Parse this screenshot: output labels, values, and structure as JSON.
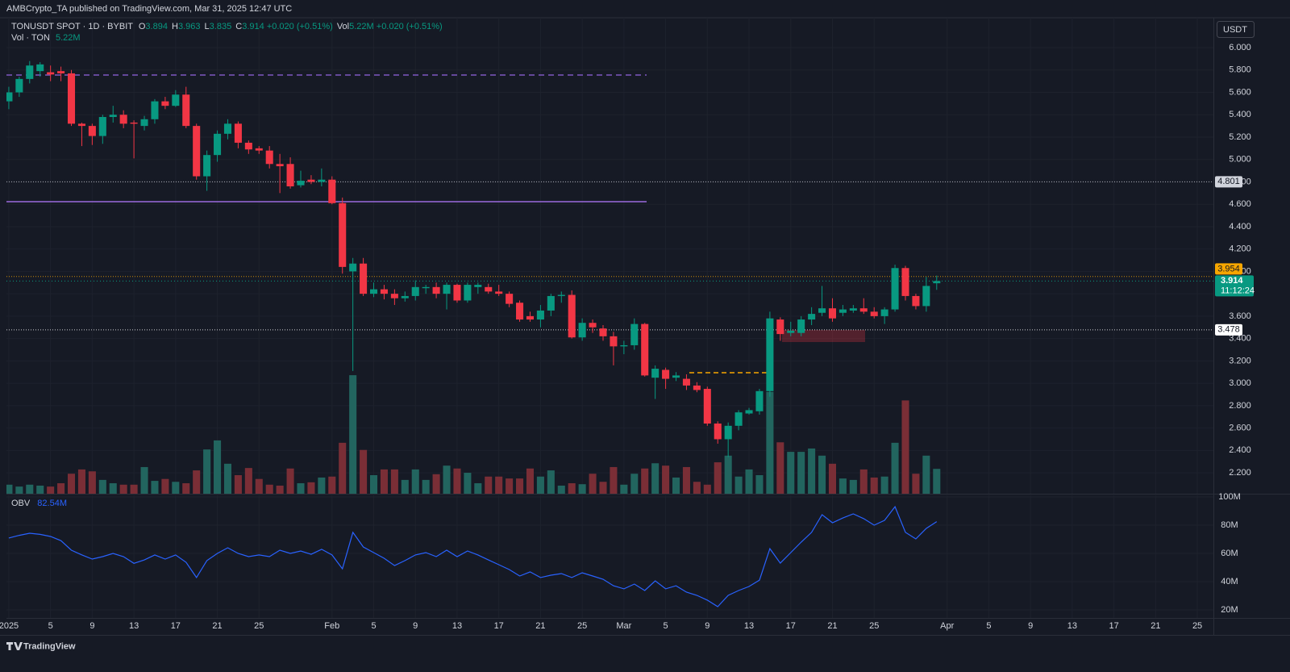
{
  "header": {
    "publisher": "AMBCrypto_TA published on TradingView.com, Mar 31, 2025 12:47 UTC",
    "logo": "TradingView"
  },
  "chart_data": {
    "type": "candlestick",
    "currency": "USDT",
    "legend": {
      "symbol": "TONUSDT SPOT · 1D · BYBIT",
      "o": "O",
      "h": "H",
      "l": "L",
      "c": "C",
      "change": "+0.020 (+0.51%)",
      "vol": "Vol"
    },
    "up_color": "#089981",
    "down_color": "#f23645",
    "x": [
      "2025-01-01",
      "2025-01-02",
      "2025-01-03",
      "2025-01-04",
      "2025-01-05",
      "2025-01-06",
      "2025-01-07",
      "2025-01-08",
      "2025-01-09",
      "2025-01-10",
      "2025-01-11",
      "2025-01-12",
      "2025-01-13",
      "2025-01-14",
      "2025-01-15",
      "2025-01-16",
      "2025-01-17",
      "2025-01-18",
      "2025-01-19",
      "2025-01-20",
      "2025-01-21",
      "2025-01-22",
      "2025-01-23",
      "2025-01-24",
      "2025-01-25",
      "2025-01-26",
      "2025-01-27",
      "2025-01-28",
      "2025-01-29",
      "2025-01-30",
      "2025-01-31",
      "2025-02-01",
      "2025-02-02",
      "2025-02-03",
      "2025-02-04",
      "2025-02-05",
      "2025-02-06",
      "2025-02-07",
      "2025-02-08",
      "2025-02-09",
      "2025-02-10",
      "2025-02-11",
      "2025-02-12",
      "2025-02-13",
      "2025-02-14",
      "2025-02-15",
      "2025-02-16",
      "2025-02-17",
      "2025-02-18",
      "2025-02-19",
      "2025-02-20",
      "2025-02-21",
      "2025-02-22",
      "2025-02-23",
      "2025-02-24",
      "2025-02-25",
      "2025-02-26",
      "2025-02-27",
      "2025-02-28",
      "2025-03-01",
      "2025-03-02",
      "2025-03-03",
      "2025-03-04",
      "2025-03-05",
      "2025-03-06",
      "2025-03-07",
      "2025-03-08",
      "2025-03-09",
      "2025-03-10",
      "2025-03-11",
      "2025-03-12",
      "2025-03-13",
      "2025-03-14",
      "2025-03-15",
      "2025-03-16",
      "2025-03-17",
      "2025-03-18",
      "2025-03-19",
      "2025-03-20",
      "2025-03-21",
      "2025-03-22",
      "2025-03-23",
      "2025-03-24",
      "2025-03-25",
      "2025-03-26",
      "2025-03-27",
      "2025-03-28",
      "2025-03-29",
      "2025-03-30",
      "2025-03-31"
    ],
    "open": [
      5.52,
      5.6,
      5.72,
      5.79,
      5.78,
      5.79,
      5.77,
      5.32,
      5.3,
      5.21,
      5.38,
      5.4,
      5.33,
      5.3,
      5.36,
      5.52,
      5.48,
      5.58,
      5.3,
      4.85,
      5.04,
      5.23,
      5.32,
      5.15,
      5.1,
      5.08,
      4.96,
      4.96,
      4.77,
      4.82,
      4.8,
      4.82,
      4.61,
      4.0,
      4.07,
      3.8,
      3.84,
      3.8,
      3.76,
      3.78,
      3.85,
      3.86,
      3.8,
      3.88,
      3.74,
      3.86,
      3.86,
      3.82,
      3.8,
      3.72,
      3.6,
      3.57,
      3.65,
      3.78,
      3.79,
      3.41,
      3.54,
      3.49,
      3.42,
      3.33,
      3.34,
      3.53,
      3.05,
      3.12,
      3.05,
      3.04,
      2.98,
      2.95,
      2.64,
      2.5,
      2.62,
      2.73,
      2.75,
      2.93,
      3.57,
      3.45,
      3.45,
      3.57,
      3.63,
      3.67,
      3.63,
      3.65,
      3.67,
      3.64,
      3.6,
      3.66,
      4.03,
      3.78,
      3.69,
      3.894
    ],
    "high": [
      5.65,
      5.74,
      5.88,
      5.87,
      5.84,
      5.83,
      5.8,
      5.33,
      5.32,
      5.4,
      5.48,
      5.44,
      5.35,
      5.39,
      5.54,
      5.56,
      5.62,
      5.65,
      5.32,
      5.08,
      5.26,
      5.36,
      5.34,
      5.17,
      5.12,
      5.12,
      5.05,
      5.02,
      4.9,
      4.86,
      4.92,
      4.85,
      4.66,
      4.12,
      4.12,
      3.9,
      3.88,
      3.84,
      3.82,
      3.92,
      3.88,
      3.9,
      3.9,
      3.89,
      3.9,
      3.9,
      3.89,
      3.88,
      3.82,
      3.74,
      3.64,
      3.7,
      3.8,
      3.82,
      3.83,
      3.58,
      3.57,
      3.52,
      3.46,
      3.38,
      3.58,
      3.54,
      3.16,
      3.14,
      3.1,
      3.08,
      3.01,
      2.97,
      2.66,
      2.65,
      2.76,
      2.78,
      2.95,
      3.64,
      3.59,
      3.55,
      3.6,
      3.68,
      3.87,
      3.76,
      3.7,
      3.7,
      3.76,
      3.68,
      3.68,
      4.06,
      4.05,
      3.8,
      3.95,
      3.963
    ],
    "low": [
      5.45,
      5.56,
      5.68,
      5.74,
      5.7,
      5.7,
      5.3,
      5.12,
      5.13,
      5.14,
      5.33,
      5.28,
      5.01,
      5.26,
      5.32,
      5.45,
      5.47,
      5.28,
      4.82,
      4.72,
      4.98,
      5.18,
      5.1,
      5.05,
      5.05,
      4.92,
      4.7,
      4.74,
      4.75,
      4.78,
      4.76,
      4.6,
      3.98,
      3.11,
      3.78,
      3.77,
      3.75,
      3.7,
      3.73,
      3.74,
      3.8,
      3.76,
      3.66,
      3.72,
      3.72,
      3.8,
      3.8,
      3.78,
      3.68,
      3.55,
      3.55,
      3.5,
      3.6,
      3.72,
      3.4,
      3.38,
      3.45,
      3.38,
      3.16,
      3.26,
      3.3,
      3.06,
      2.86,
      2.95,
      3.02,
      2.94,
      2.92,
      2.62,
      2.46,
      2.34,
      2.58,
      2.72,
      2.72,
      2.88,
      3.38,
      3.42,
      3.42,
      3.52,
      3.6,
      3.55,
      3.6,
      3.63,
      3.62,
      3.58,
      3.53,
      3.64,
      3.74,
      3.66,
      3.64,
      3.835
    ],
    "close": [
      5.6,
      5.72,
      5.84,
      5.85,
      5.76,
      5.77,
      5.32,
      5.3,
      5.21,
      5.38,
      5.4,
      5.32,
      5.32,
      5.36,
      5.52,
      5.48,
      5.58,
      5.3,
      4.85,
      5.04,
      5.23,
      5.32,
      5.15,
      5.09,
      5.08,
      4.96,
      4.94,
      4.76,
      4.81,
      4.8,
      4.82,
      4.61,
      4.04,
      4.07,
      3.8,
      3.84,
      3.8,
      3.76,
      3.78,
      3.86,
      3.86,
      3.8,
      3.88,
      3.74,
      3.88,
      3.88,
      3.82,
      3.8,
      3.71,
      3.57,
      3.57,
      3.65,
      3.78,
      3.79,
      3.41,
      3.54,
      3.5,
      3.42,
      3.33,
      3.34,
      3.53,
      3.07,
      3.13,
      3.04,
      3.07,
      2.98,
      2.94,
      2.64,
      2.5,
      2.62,
      2.74,
      2.76,
      2.93,
      3.58,
      3.44,
      3.47,
      3.57,
      3.62,
      3.67,
      3.58,
      3.66,
      3.67,
      3.64,
      3.6,
      3.66,
      4.03,
      3.78,
      3.69,
      3.87,
      3.914
    ],
    "ylim": [
      2.013,
      6.267
    ],
    "yticks": [
      {
        "value": 6.0,
        "label": "6.000"
      },
      {
        "value": 5.8,
        "label": "5.800"
      },
      {
        "value": 5.6,
        "label": "5.600"
      },
      {
        "value": 5.4,
        "label": "5.400"
      },
      {
        "value": 5.2,
        "label": "5.200"
      },
      {
        "value": 5.0,
        "label": "5.000"
      },
      {
        "value": 4.8,
        "label": "4.800"
      },
      {
        "value": 4.6,
        "label": "4.600"
      },
      {
        "value": 4.4,
        "label": "4.400"
      },
      {
        "value": 4.2,
        "label": "4.200"
      },
      {
        "value": 4.0,
        "label": "4.000"
      },
      {
        "value": 3.8,
        "label": "3.800"
      },
      {
        "value": 3.6,
        "label": "3.600"
      },
      {
        "value": 3.4,
        "label": "3.400"
      },
      {
        "value": 3.2,
        "label": "3.200"
      },
      {
        "value": 3.0,
        "label": "3.000"
      },
      {
        "value": 2.8,
        "label": "2.800"
      },
      {
        "value": 2.6,
        "label": "2.600"
      },
      {
        "value": 2.4,
        "label": "2.400"
      },
      {
        "value": 2.2,
        "label": "2.200"
      }
    ],
    "xlim": [
      "2024-12-31",
      "2025-04-26"
    ],
    "xticks": [
      {
        "value": "2025-01-01",
        "label": "2025"
      },
      {
        "value": "2025-01-05",
        "label": "5"
      },
      {
        "value": "2025-01-09",
        "label": "9"
      },
      {
        "value": "2025-01-13",
        "label": "13"
      },
      {
        "value": "2025-01-17",
        "label": "17"
      },
      {
        "value": "2025-01-21",
        "label": "21"
      },
      {
        "value": "2025-01-25",
        "label": "25"
      },
      {
        "value": "2025-02-01",
        "label": "Feb"
      },
      {
        "value": "2025-02-05",
        "label": "5"
      },
      {
        "value": "2025-02-09",
        "label": "9"
      },
      {
        "value": "2025-02-13",
        "label": "13"
      },
      {
        "value": "2025-02-17",
        "label": "17"
      },
      {
        "value": "2025-02-21",
        "label": "21"
      },
      {
        "value": "2025-02-25",
        "label": "25"
      },
      {
        "value": "2025-03-01",
        "label": "Mar"
      },
      {
        "value": "2025-03-05",
        "label": "5"
      },
      {
        "value": "2025-03-09",
        "label": "9"
      },
      {
        "value": "2025-03-13",
        "label": "13"
      },
      {
        "value": "2025-03-17",
        "label": "17"
      },
      {
        "value": "2025-03-21",
        "label": "21"
      },
      {
        "value": "2025-03-25",
        "label": "25"
      },
      {
        "value": "2025-04-01",
        "label": "Apr"
      },
      {
        "value": "2025-04-05",
        "label": "5"
      },
      {
        "value": "2025-04-09",
        "label": "9"
      },
      {
        "value": "2025-04-13",
        "label": "13"
      },
      {
        "value": "2025-04-17",
        "label": "17"
      },
      {
        "value": "2025-04-21",
        "label": "21"
      },
      {
        "value": "2025-04-25",
        "label": "25"
      }
    ],
    "grid": true,
    "price_lines": [
      4.801,
      3.954,
      3.478
    ],
    "price_line_colors": [
      "#d1d4dc",
      "#f7a600",
      "#ffffff"
    ],
    "countdown": "11:12:24",
    "volume": {
      "name": "Vol · TON",
      "legend_value": "5.22M",
      "ylim": [
        0,
        100
      ],
      "up_color": "#22655f",
      "down_color": "#7a2e36",
      "values": [
        1.9,
        1.5,
        1.9,
        1.7,
        1.5,
        2.2,
        4.2,
        5.1,
        4.7,
        2.9,
        2.2,
        1.9,
        1.9,
        5.6,
        2.7,
        3.1,
        2.5,
        2.2,
        4.9,
        9.3,
        11.2,
        6.3,
        3.9,
        5.4,
        3.1,
        1.9,
        1.7,
        5.3,
        2.2,
        2.4,
        3.4,
        3.6,
        10.7,
        24.9,
        9.2,
        3.9,
        5.1,
        5.1,
        2.9,
        5.1,
        2.9,
        4.1,
        5.9,
        5.3,
        4.4,
        2.2,
        3.6,
        3.6,
        3.2,
        3.2,
        5.3,
        3.6,
        4.9,
        1.7,
        2.2,
        2.0,
        4.2,
        2.5,
        5.6,
        1.9,
        4.2,
        5.3,
        6.4,
        5.9,
        3.4,
        5.6,
        2.5,
        1.9,
        6.6,
        8.0,
        3.6,
        5.1,
        3.9,
        21.4,
        10.8,
        8.8,
        8.8,
        9.5,
        8.0,
        6.3,
        3.2,
        2.9,
        5.1,
        3.4,
        3.6,
        10.7,
        19.6,
        4.2,
        8.0,
        5.22
      ]
    },
    "obv": {
      "name": "OBV",
      "legend_value": "82.54M",
      "color": "#2962ff",
      "ylim": [
        14.29,
        101.14
      ],
      "yticks": [
        {
          "value": 100,
          "label": "100M"
        },
        {
          "value": 80,
          "label": "80M"
        },
        {
          "value": 60,
          "label": "60M"
        },
        {
          "value": 40,
          "label": "40M"
        },
        {
          "value": 20,
          "label": "20M"
        }
      ],
      "values": [
        70.9,
        72.8,
        74.3,
        73.5,
        72,
        69,
        62.3,
        59,
        56,
        57.7,
        60,
        57.7,
        53,
        55.4,
        58.9,
        56,
        58.9,
        53.7,
        42.9,
        54.9,
        60,
        64,
        60,
        57.7,
        58.9,
        57.7,
        62.3,
        60,
        61.7,
        59.4,
        62.9,
        58.9,
        49.1,
        74.9,
        64.6,
        60.6,
        56.6,
        51.4,
        54.9,
        58.9,
        60.6,
        57.7,
        62.3,
        57.7,
        61.7,
        58.9,
        55.4,
        52,
        48.6,
        44,
        46.9,
        42.9,
        44.6,
        45.7,
        42.9,
        46.3,
        44,
        41.7,
        37.1,
        34.9,
        38.3,
        33.7,
        40.6,
        34.9,
        37.1,
        32.6,
        30.3,
        26.9,
        22.3,
        30.3,
        33.7,
        36.6,
        41.1,
        63.4,
        53.1,
        60.6,
        68,
        74.9,
        87.4,
        81.7,
        85.1,
        88,
        84.6,
        80,
        83.4,
        93.1,
        74.9,
        70.3,
        77.7,
        82.54
      ]
    }
  }
}
